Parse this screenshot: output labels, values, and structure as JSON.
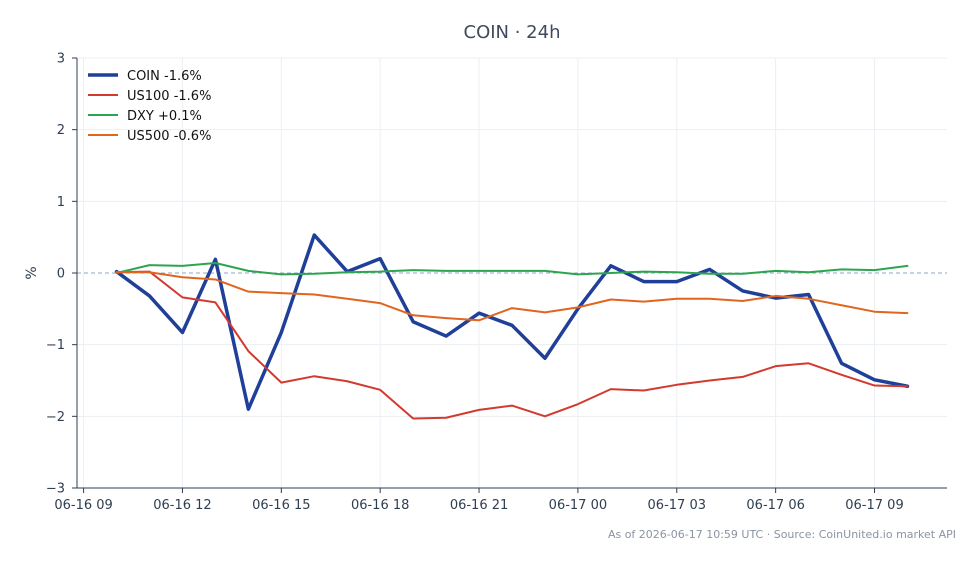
{
  "chart_data": {
    "type": "line",
    "title": "COIN · 24h",
    "ylabel": "%",
    "xlabel": "",
    "ylim": [
      -3,
      3
    ],
    "y_ticks": [
      3,
      2,
      1,
      0,
      -1,
      -2,
      -3
    ],
    "y_tick_labels": [
      "3",
      "2",
      "1",
      "0",
      "−1",
      "−2",
      "−3"
    ],
    "x_ticks": [
      {
        "label": "06-16 09",
        "hour": 0
      },
      {
        "label": "06-16 12",
        "hour": 3
      },
      {
        "label": "06-16 15",
        "hour": 6
      },
      {
        "label": "06-16 18",
        "hour": 9
      },
      {
        "label": "06-16 21",
        "hour": 12
      },
      {
        "label": "06-17 00",
        "hour": 15
      },
      {
        "label": "06-17 03",
        "hour": 18
      },
      {
        "label": "06-17 06",
        "hour": 21
      },
      {
        "label": "06-17 09",
        "hour": 24
      }
    ],
    "x_range_hours": [
      -0.2,
      26.2
    ],
    "x_hours": [
      1,
      2,
      3,
      4,
      5,
      6,
      7,
      8,
      9,
      10,
      11,
      12,
      13,
      14,
      15,
      16,
      17,
      18,
      19,
      20,
      21,
      22,
      23,
      24,
      25
    ],
    "grid": true,
    "zero_line": true,
    "legend_position": "top-left",
    "series": [
      {
        "name": "COIN -1.6%",
        "color": "#1f3f99",
        "width": 3.5,
        "values": [
          0.02,
          -0.32,
          -0.83,
          0.19,
          -1.9,
          -0.83,
          0.53,
          0.02,
          0.2,
          -0.68,
          -0.88,
          -0.56,
          -0.73,
          -1.19,
          -0.5,
          0.1,
          -0.12,
          -0.12,
          0.05,
          -0.25,
          -0.35,
          -0.3,
          -1.26,
          -1.49,
          -1.58
        ]
      },
      {
        "name": "US100 -1.6%",
        "color": "#d23a2f",
        "width": 2,
        "values": [
          0.01,
          0.02,
          -0.34,
          -0.41,
          -1.09,
          -1.53,
          -1.44,
          -1.51,
          -1.63,
          -2.03,
          -2.02,
          -1.91,
          -1.85,
          -2.0,
          -1.83,
          -1.62,
          -1.64,
          -1.56,
          -1.5,
          -1.45,
          -1.3,
          -1.26,
          -1.42,
          -1.57,
          -1.58
        ]
      },
      {
        "name": "DXY +0.1%",
        "color": "#2ea44f",
        "width": 2,
        "values": [
          0.0,
          0.11,
          0.1,
          0.14,
          0.03,
          -0.02,
          -0.01,
          0.01,
          0.02,
          0.04,
          0.03,
          0.03,
          0.03,
          0.03,
          -0.02,
          0.0,
          0.02,
          0.01,
          -0.01,
          -0.01,
          0.03,
          0.01,
          0.05,
          0.04,
          0.1
        ]
      },
      {
        "name": "US500 -0.6%",
        "color": "#e0661f",
        "width": 2,
        "values": [
          0.01,
          0.01,
          -0.06,
          -0.09,
          -0.26,
          -0.28,
          -0.3,
          -0.36,
          -0.42,
          -0.59,
          -0.63,
          -0.66,
          -0.49,
          -0.55,
          -0.48,
          -0.37,
          -0.4,
          -0.36,
          -0.36,
          -0.39,
          -0.32,
          -0.36,
          -0.45,
          -0.54,
          -0.56
        ]
      }
    ]
  },
  "footer": "As of 2026-06-17 10:59 UTC · Source: CoinUnited.io market API"
}
